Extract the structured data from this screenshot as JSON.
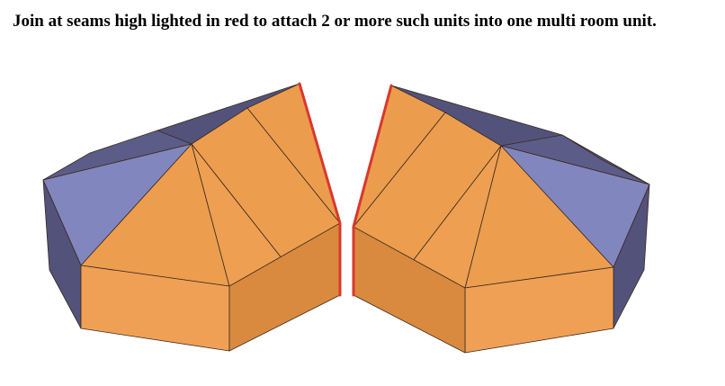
{
  "caption": "Join at seams high lighted in red to attach 2 or more such units into one multi room unit.",
  "colors": {
    "roof_orange": "#EC9D4E",
    "wall_orange": "#F0A055",
    "wall_orange_dark": "#D98A3E",
    "roof_lavender": "#8286BE",
    "roof_dark_blue": "#52527A",
    "seam_red": "#D9382C"
  }
}
